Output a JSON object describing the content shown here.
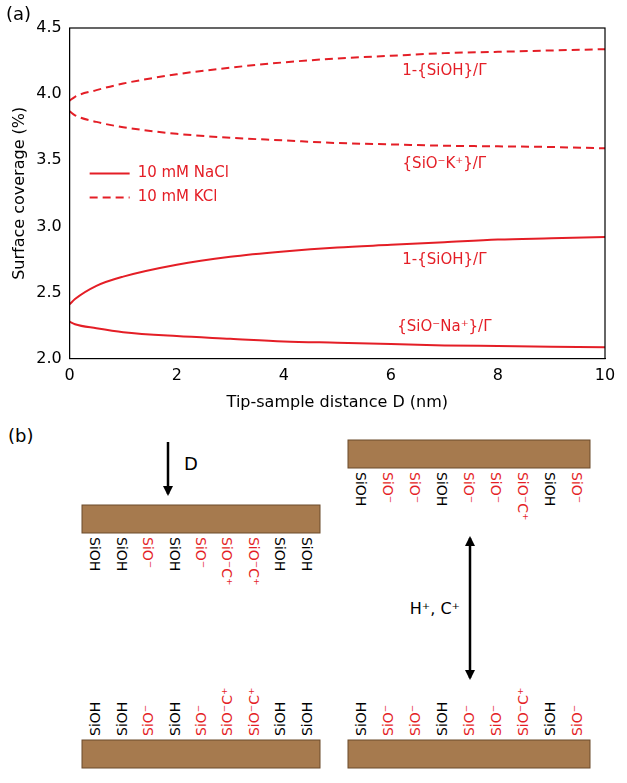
{
  "chart_data": {
    "type": "line",
    "panel_label": "(a)",
    "x_label": "Tip-sample distance D (nm)",
    "y_label": "Surface coverage (%)",
    "x": [
      0,
      0.1,
      0.5,
      1,
      2,
      3,
      4,
      5,
      6,
      7,
      8,
      9,
      10
    ],
    "series": [
      {
        "name": "10 mM NaCl",
        "color": "#e41e26",
        "line_style": "solid",
        "curves": [
          {
            "label": "1-{SiOH}/Γ",
            "values": [
              2.41,
              2.45,
              2.55,
              2.62,
              2.71,
              2.77,
              2.81,
              2.84,
              2.86,
              2.88,
              2.9,
              2.91,
              2.92
            ]
          },
          {
            "label": "{SiO⁻Na⁺}/Γ",
            "values": [
              2.28,
              2.26,
              2.23,
              2.2,
              2.17,
              2.15,
              2.13,
              2.12,
              2.11,
              2.1,
              2.095,
              2.09,
              2.085
            ]
          }
        ]
      },
      {
        "name": "10 mM KCl",
        "color": "#e41e26",
        "line_style": "dashed",
        "curves": [
          {
            "label": "1-{SiOH}/Γ",
            "values": [
              3.95,
              3.98,
              4.03,
              4.08,
              4.15,
              4.2,
              4.24,
              4.27,
              4.29,
              4.31,
              4.32,
              4.33,
              4.34
            ]
          },
          {
            "label": "{SiO⁻K⁺}/Γ",
            "values": [
              3.87,
              3.84,
              3.79,
              3.75,
              3.7,
              3.67,
              3.65,
              3.63,
              3.62,
              3.61,
              3.605,
              3.6,
              3.59
            ]
          }
        ]
      }
    ],
    "xlim": [
      0,
      10
    ],
    "xticks": [
      0,
      2,
      4,
      6,
      8,
      10
    ],
    "ylim": [
      2,
      4.5
    ],
    "yticks": [
      {
        "value": 2,
        "label": "2.0"
      },
      2.5,
      {
        "value": 3,
        "label": "3.0"
      },
      3.5,
      {
        "value": 4,
        "label": "4.0"
      },
      4.5
    ],
    "grid": false,
    "legend": "left"
  },
  "diagram": {
    "panel_label": "(b)",
    "arrows": {
      "approach": "D",
      "exchange": "H⁺, C⁺"
    },
    "left": {
      "top_plate": [
        {
          "text": "SiOH",
          "color": "#000000"
        },
        {
          "text": "SiOH",
          "color": "#000000"
        },
        {
          "text": "SiO⁻",
          "color": "#e41e26"
        },
        {
          "text": "SiOH",
          "color": "#000000"
        },
        {
          "text": "SiO⁻",
          "color": "#e41e26"
        },
        {
          "text": "SiO⁻C⁺",
          "color": "#e41e26"
        },
        {
          "text": "SiO⁻C⁺",
          "color": "#e41e26"
        },
        {
          "text": "SiOH",
          "color": "#000000"
        },
        {
          "text": "SiOH",
          "color": "#000000"
        }
      ],
      "bottom_plate": [
        {
          "text": "SiOH",
          "color": "#000000"
        },
        {
          "text": "SiOH",
          "color": "#000000"
        },
        {
          "text": "SiO⁻",
          "color": "#e41e26"
        },
        {
          "text": "SiOH",
          "color": "#000000"
        },
        {
          "text": "SiO⁻",
          "color": "#e41e26"
        },
        {
          "text": "SiO⁻C⁺",
          "color": "#e41e26"
        },
        {
          "text": "SiO⁻C⁺",
          "color": "#e41e26"
        },
        {
          "text": "SiOH",
          "color": "#000000"
        },
        {
          "text": "SiOH",
          "color": "#000000"
        }
      ]
    },
    "right": {
      "top_plate": [
        {
          "text": "SiOH",
          "color": "#000000"
        },
        {
          "text": "SiO⁻",
          "color": "#e41e26"
        },
        {
          "text": "SiO⁻",
          "color": "#e41e26"
        },
        {
          "text": "SiOH",
          "color": "#000000"
        },
        {
          "text": "SiO⁻",
          "color": "#e41e26"
        },
        {
          "text": "SiO⁻",
          "color": "#e41e26"
        },
        {
          "text": "SiO⁻C⁺",
          "color": "#e41e26"
        },
        {
          "text": "SiOH",
          "color": "#000000"
        },
        {
          "text": "SiO⁻",
          "color": "#e41e26"
        }
      ],
      "bottom_plate": [
        {
          "text": "SiOH",
          "color": "#000000"
        },
        {
          "text": "SiO⁻",
          "color": "#e41e26"
        },
        {
          "text": "SiO⁻",
          "color": "#e41e26"
        },
        {
          "text": "SiOH",
          "color": "#000000"
        },
        {
          "text": "SiO⁻",
          "color": "#e41e26"
        },
        {
          "text": "SiO⁻",
          "color": "#e41e26"
        },
        {
          "text": "SiO⁻C⁺",
          "color": "#e41e26"
        },
        {
          "text": "SiOH",
          "color": "#000000"
        },
        {
          "text": "SiO⁻",
          "color": "#e41e26"
        }
      ]
    }
  }
}
